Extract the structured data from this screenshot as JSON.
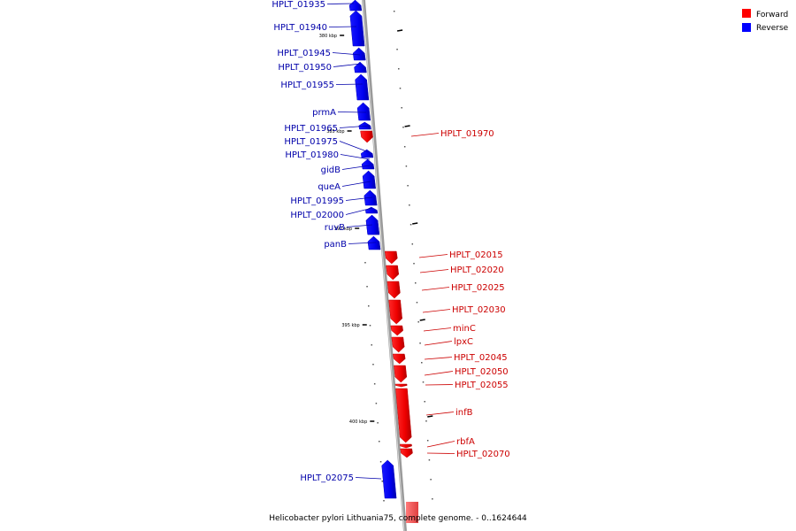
{
  "caption": "Helicobacter pylori Lithuania75, complete genome. - 0..1624644",
  "legend": [
    {
      "label": "Forward",
      "color": "#ff0000"
    },
    {
      "label": "Reverse",
      "color": "#0000ff"
    }
  ],
  "axis_ticks": [
    "380 kbp",
    "385 kbp",
    "390 kbp",
    "395 kbp",
    "400 kbp"
  ],
  "genes": [
    {
      "name": "HPLT_01935",
      "strand": "reverse"
    },
    {
      "name": "HPLT_01940",
      "strand": "reverse"
    },
    {
      "name": "HPLT_01945",
      "strand": "reverse"
    },
    {
      "name": "HPLT_01950",
      "strand": "reverse"
    },
    {
      "name": "HPLT_01955",
      "strand": "reverse"
    },
    {
      "name": "prmA",
      "strand": "reverse"
    },
    {
      "name": "HPLT_01965",
      "strand": "reverse"
    },
    {
      "name": "HPLT_01970",
      "strand": "forward"
    },
    {
      "name": "HPLT_01975",
      "strand": "reverse"
    },
    {
      "name": "HPLT_01980",
      "strand": "reverse"
    },
    {
      "name": "gidB",
      "strand": "reverse"
    },
    {
      "name": "queA",
      "strand": "reverse"
    },
    {
      "name": "HPLT_01995",
      "strand": "reverse"
    },
    {
      "name": "HPLT_02000",
      "strand": "reverse"
    },
    {
      "name": "ruvB",
      "strand": "reverse"
    },
    {
      "name": "panB",
      "strand": "reverse"
    },
    {
      "name": "HPLT_02015",
      "strand": "forward"
    },
    {
      "name": "HPLT_02020",
      "strand": "forward"
    },
    {
      "name": "HPLT_02025",
      "strand": "forward"
    },
    {
      "name": "HPLT_02030",
      "strand": "forward"
    },
    {
      "name": "minC",
      "strand": "forward"
    },
    {
      "name": "lpxC",
      "strand": "forward"
    },
    {
      "name": "HPLT_02045",
      "strand": "forward"
    },
    {
      "name": "HPLT_02050",
      "strand": "forward"
    },
    {
      "name": "HPLT_02055",
      "strand": "forward"
    },
    {
      "name": "infB",
      "strand": "forward"
    },
    {
      "name": "rbfA",
      "strand": "forward"
    },
    {
      "name": "HPLT_02070",
      "strand": "forward"
    },
    {
      "name": "HPLT_02075",
      "strand": "reverse"
    }
  ]
}
